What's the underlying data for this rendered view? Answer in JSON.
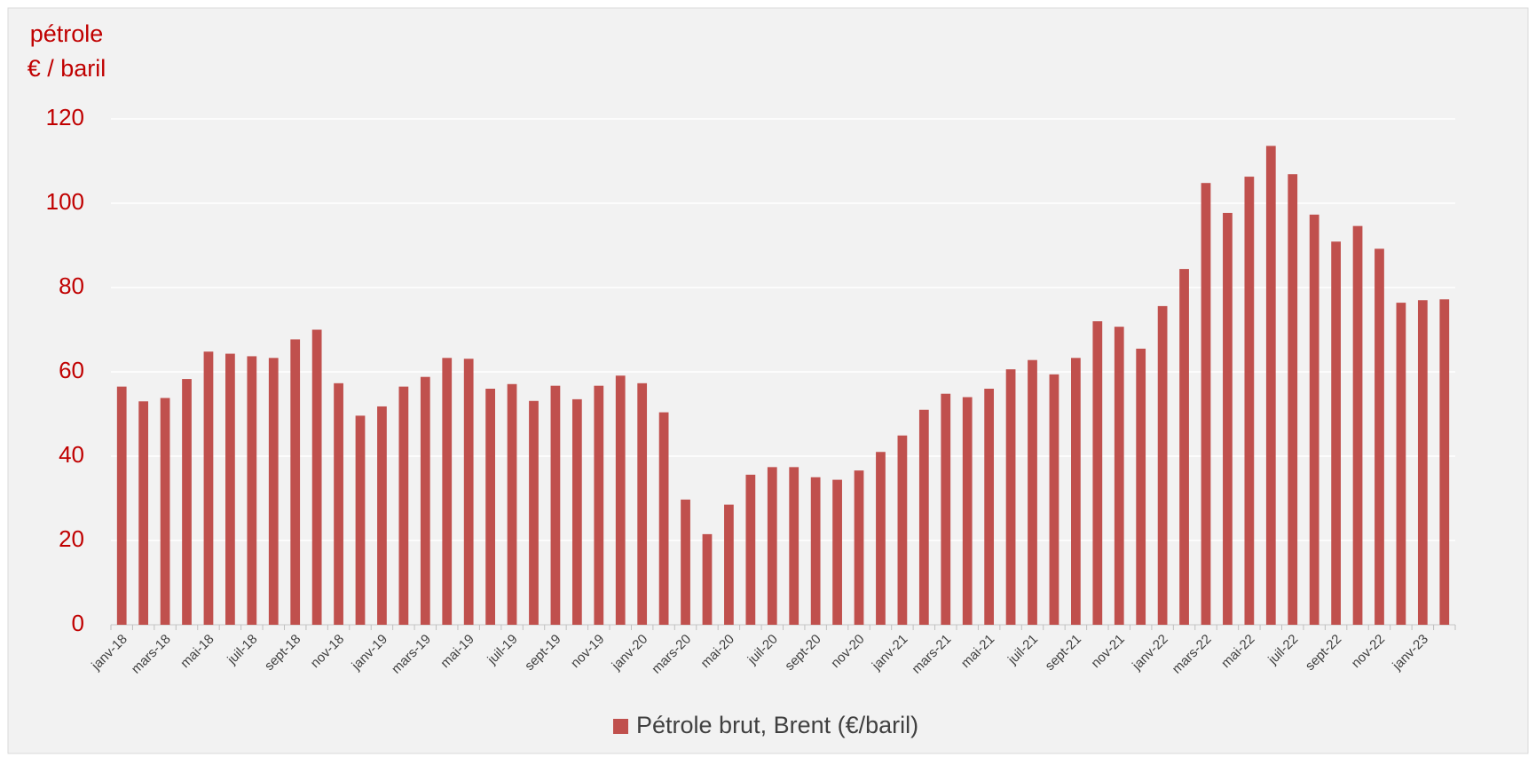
{
  "chart_data": {
    "type": "bar",
    "y_label": [
      "pétrole",
      "€ / baril"
    ],
    "categories": [
      "janv-18",
      null,
      "mars-18",
      null,
      "mai-18",
      null,
      "juil-18",
      null,
      "sept-18",
      null,
      "nov-18",
      null,
      "janv-19",
      null,
      "mars-19",
      null,
      "mai-19",
      null,
      "juil-19",
      null,
      "sept-19",
      null,
      "nov-19",
      null,
      "janv-20",
      null,
      "mars-20",
      null,
      "mai-20",
      null,
      "juil-20",
      null,
      "sept-20",
      null,
      "nov-20",
      null,
      "janv-21",
      null,
      "mars-21",
      null,
      "mai-21",
      null,
      "juil-21",
      null,
      "sept-21",
      null,
      "nov-21",
      null,
      "janv-22",
      null,
      "mars-22",
      null,
      "mai-22",
      null,
      "juil-22",
      null,
      "sept-22",
      null,
      "nov-22",
      null,
      "janv-23",
      null
    ],
    "series": [
      {
        "name": "Pétrole brut, Brent (€/baril)",
        "color": "#c0504d",
        "values": [
          56.5,
          53,
          53.8,
          58.3,
          64.8,
          64.3,
          63.7,
          63.3,
          67.7,
          70,
          57.3,
          49.6,
          51.8,
          56.5,
          58.8,
          63.3,
          63.1,
          56,
          57.1,
          53.1,
          56.7,
          53.5,
          56.7,
          59.1,
          57.3,
          50.4,
          29.7,
          21.5,
          28.5,
          35.6,
          37.4,
          37.4,
          35,
          34.4,
          36.6,
          41,
          44.9,
          51,
          54.8,
          54,
          56,
          60.6,
          62.8,
          59.4,
          63.3,
          72,
          70.7,
          65.5,
          75.6,
          84.4,
          104.8,
          97.7,
          106.3,
          113.6,
          106.9,
          97.3,
          90.9,
          94.6,
          89.2,
          76.4,
          77,
          77.2
        ]
      }
    ],
    "ylim": [
      0,
      120
    ],
    "yticks": [
      0,
      20,
      40,
      60,
      80,
      100,
      120
    ],
    "grid": true,
    "text_color": "#c00000",
    "legend": "bottom"
  }
}
